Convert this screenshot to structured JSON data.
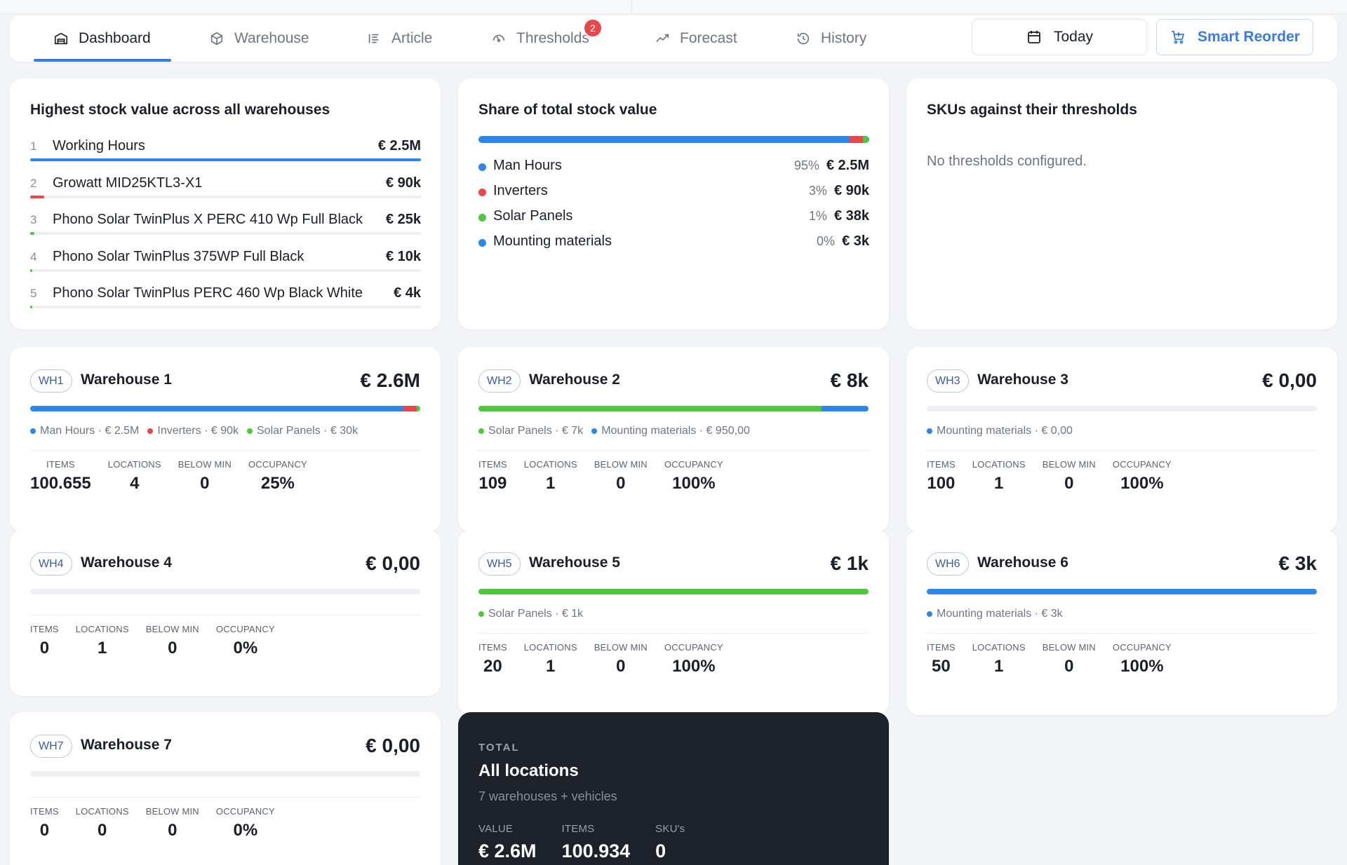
{
  "colors": {
    "accent": "#3a7be0",
    "man_hours": "#2f86e8",
    "inverters": "#e8474b",
    "solar_panels": "#4ec83e",
    "mounting": "#2f86e8",
    "badge": "#e8474b"
  },
  "nav": {
    "tabs": [
      {
        "label": "Dashboard",
        "icon": "warehouse-icon",
        "active": true
      },
      {
        "label": "Warehouse",
        "icon": "box-icon"
      },
      {
        "label": "Article",
        "icon": "list-icon"
      },
      {
        "label": "Thresholds",
        "icon": "gauge-icon",
        "badge": "2"
      },
      {
        "label": "Forecast",
        "icon": "trend-icon"
      },
      {
        "label": "History",
        "icon": "history-icon"
      }
    ],
    "today_label": "Today",
    "reorder_label": "Smart Reorder"
  },
  "top_value": {
    "title": "Highest stock value across all warehouses",
    "items": [
      {
        "rank": "1",
        "name": "Working Hours",
        "value": "€ 2.5M",
        "share": 1.0,
        "color": "#2f86e8"
      },
      {
        "rank": "2",
        "name": "Growatt MID25KTL3-X1",
        "value": "€ 90k",
        "share": 0.036,
        "color": "#e8474b"
      },
      {
        "rank": "3",
        "name": "Phono Solar TwinPlus X PERC 410 Wp Full Black",
        "value": "€ 25k",
        "share": 0.01,
        "color": "#4ec83e"
      },
      {
        "rank": "4",
        "name": "Phono Solar TwinPlus 375WP Full Black",
        "value": "€ 10k",
        "share": 0.004,
        "color": "#4ec83e"
      },
      {
        "rank": "5",
        "name": "Phono Solar TwinPlus PERC 460 Wp Black White",
        "value": "€ 4k",
        "share": 0.0016,
        "color": "#4ec83e"
      }
    ]
  },
  "share": {
    "title": "Share of total stock value",
    "rows": [
      {
        "label": "Man Hours",
        "pct": "95%",
        "amount": "€ 2.5M",
        "fraction": 0.95,
        "color": "#2f86e8"
      },
      {
        "label": "Inverters",
        "pct": "3%",
        "amount": "€ 90k",
        "fraction": 0.034,
        "color": "#e8474b"
      },
      {
        "label": "Solar Panels",
        "pct": "1%",
        "amount": "€ 38k",
        "fraction": 0.014,
        "color": "#4ec83e"
      },
      {
        "label": "Mounting materials",
        "pct": "0%",
        "amount": "€ 3k",
        "fraction": 0.002,
        "color": "#2f86e8"
      }
    ]
  },
  "thresholds": {
    "title": "SKUs against their thresholds",
    "empty": "No thresholds configured."
  },
  "stat_labels": {
    "items": "ITEMS",
    "locations": "LOCATIONS",
    "below_min": "BELOW MIN",
    "occupancy": "OCCUPANCY"
  },
  "warehouses": [
    {
      "code": "WH1",
      "name": "Warehouse 1",
      "value": "€ 2.6M",
      "segments": [
        {
          "fraction": 0.957,
          "color": "#2f86e8"
        },
        {
          "fraction": 0.034,
          "color": "#e8474b"
        },
        {
          "fraction": 0.009,
          "color": "#4ec83e"
        }
      ],
      "legend": [
        {
          "text": "Man Hours · € 2.5M",
          "color": "#2f86e8"
        },
        {
          "text": "Inverters · € 90k",
          "color": "#e8474b"
        },
        {
          "text": "Solar Panels · € 30k",
          "color": "#4ec83e"
        }
      ],
      "items": "100.655",
      "locations": "4",
      "below_min": "0",
      "occupancy": "25%"
    },
    {
      "code": "WH2",
      "name": "Warehouse 2",
      "value": "€ 8k",
      "segments": [
        {
          "fraction": 0.88,
          "color": "#4ec83e"
        },
        {
          "fraction": 0.12,
          "color": "#2f86e8"
        }
      ],
      "legend": [
        {
          "text": "Solar Panels · € 7k",
          "color": "#4ec83e"
        },
        {
          "text": "Mounting materials · € 950,00",
          "color": "#2f86e8"
        }
      ],
      "items": "109",
      "locations": "1",
      "below_min": "0",
      "occupancy": "100%"
    },
    {
      "code": "WH3",
      "name": "Warehouse 3",
      "value": "€ 0,00",
      "segments": [],
      "legend": [
        {
          "text": "Mounting materials · € 0,00",
          "color": "#2f86e8"
        }
      ],
      "items": "100",
      "locations": "1",
      "below_min": "0",
      "occupancy": "100%"
    },
    {
      "code": "WH4",
      "name": "Warehouse 4",
      "value": "€ 0,00",
      "segments": [],
      "legend": [],
      "items": "0",
      "locations": "1",
      "below_min": "0",
      "occupancy": "0%"
    },
    {
      "code": "WH5",
      "name": "Warehouse 5",
      "value": "€ 1k",
      "segments": [
        {
          "fraction": 1.0,
          "color": "#4ec83e"
        }
      ],
      "legend": [
        {
          "text": "Solar Panels · € 1k",
          "color": "#4ec83e"
        }
      ],
      "items": "20",
      "locations": "1",
      "below_min": "0",
      "occupancy": "100%"
    },
    {
      "code": "WH6",
      "name": "Warehouse 6",
      "value": "€ 3k",
      "segments": [
        {
          "fraction": 1.0,
          "color": "#2f86e8"
        }
      ],
      "legend": [
        {
          "text": "Mounting materials · € 3k",
          "color": "#2f86e8"
        }
      ],
      "items": "50",
      "locations": "1",
      "below_min": "0",
      "occupancy": "100%"
    },
    {
      "code": "WH7",
      "name": "Warehouse 7",
      "value": "€ 0,00",
      "segments": [],
      "legend": [],
      "items": "0",
      "locations": "0",
      "below_min": "0",
      "occupancy": "0%"
    }
  ],
  "total": {
    "kicker": "TOTAL",
    "title": "All locations",
    "subtitle": "7 warehouses + vehicles",
    "value_label": "VALUE",
    "value": "€ 2.6M",
    "items_label": "ITEMS",
    "items": "100.934",
    "skus_label": "SKU's",
    "skus": "0"
  }
}
